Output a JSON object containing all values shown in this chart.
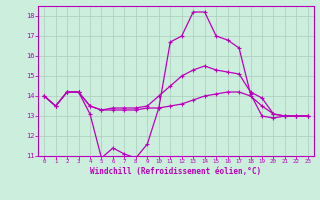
{
  "xlabel": "Windchill (Refroidissement éolien,°C)",
  "bg_color": "#cceedd",
  "grid_color": "#aaccbb",
  "line_color": "#bb00bb",
  "xlim": [
    -0.5,
    23.5
  ],
  "ylim": [
    11,
    18.5
  ],
  "yticks": [
    11,
    12,
    13,
    14,
    15,
    16,
    17,
    18
  ],
  "xticks": [
    0,
    1,
    2,
    3,
    4,
    5,
    6,
    7,
    8,
    9,
    10,
    11,
    12,
    13,
    14,
    15,
    16,
    17,
    18,
    19,
    20,
    21,
    22,
    23
  ],
  "line1_x": [
    0,
    1,
    2,
    3,
    4,
    5,
    6,
    7,
    8,
    9,
    10,
    11,
    12,
    13,
    14,
    15,
    16,
    17,
    18,
    19,
    20,
    21,
    22,
    23
  ],
  "line1_y": [
    14.0,
    13.5,
    14.2,
    14.2,
    13.1,
    10.9,
    11.4,
    11.1,
    10.9,
    11.6,
    13.4,
    16.7,
    17.0,
    18.2,
    18.2,
    17.0,
    16.8,
    16.4,
    14.1,
    13.0,
    12.9,
    13.0,
    13.0,
    13.0
  ],
  "line2_x": [
    0,
    1,
    2,
    3,
    4,
    5,
    6,
    7,
    8,
    9,
    10,
    11,
    12,
    13,
    14,
    15,
    16,
    17,
    18,
    19,
    20,
    21,
    22,
    23
  ],
  "line2_y": [
    14.0,
    13.5,
    14.2,
    14.2,
    13.5,
    13.3,
    13.4,
    13.4,
    13.4,
    13.5,
    14.0,
    14.5,
    15.0,
    15.3,
    15.5,
    15.3,
    15.2,
    15.1,
    14.2,
    13.9,
    13.1,
    13.0,
    13.0,
    13.0
  ],
  "line3_x": [
    0,
    1,
    2,
    3,
    4,
    5,
    6,
    7,
    8,
    9,
    10,
    11,
    12,
    13,
    14,
    15,
    16,
    17,
    18,
    19,
    20,
    21,
    22,
    23
  ],
  "line3_y": [
    14.0,
    13.5,
    14.2,
    14.2,
    13.5,
    13.3,
    13.3,
    13.3,
    13.3,
    13.4,
    13.4,
    13.5,
    13.6,
    13.8,
    14.0,
    14.1,
    14.2,
    14.2,
    14.0,
    13.5,
    13.1,
    13.0,
    13.0,
    13.0
  ]
}
